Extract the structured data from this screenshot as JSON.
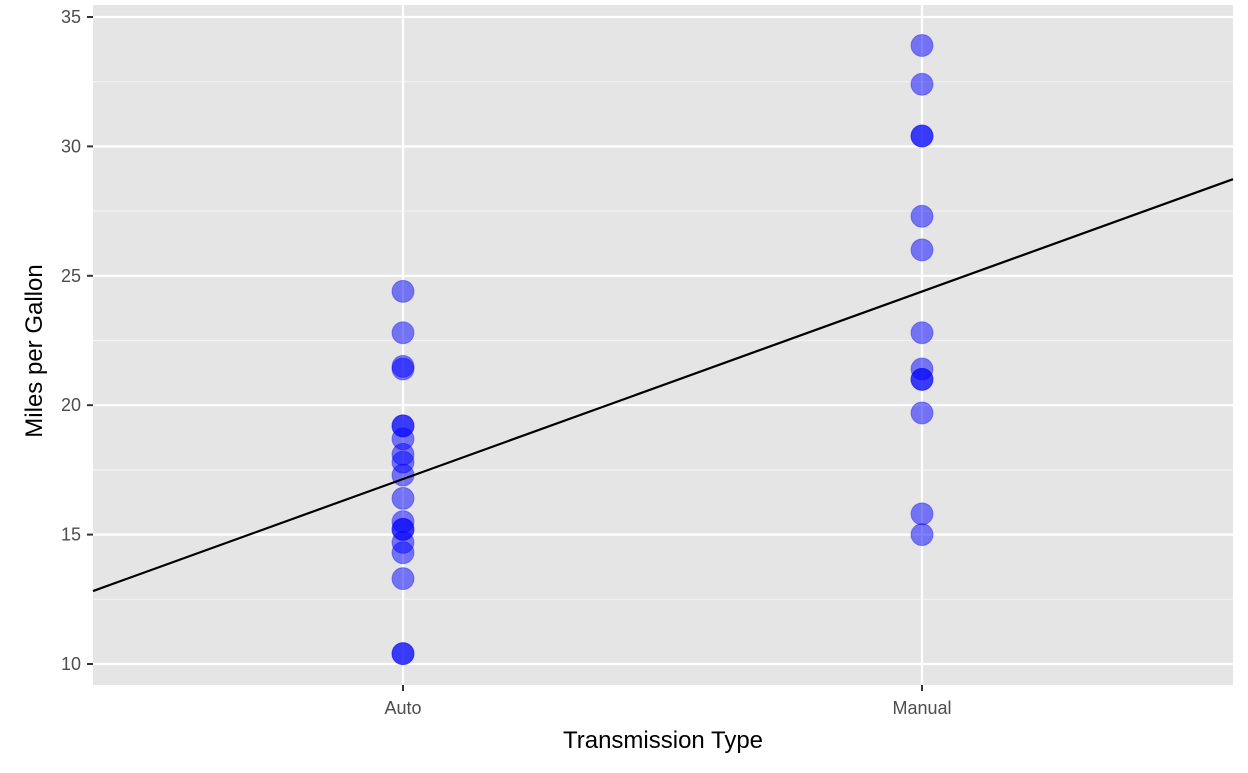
{
  "chart_data": {
    "type": "scatter",
    "title": "",
    "xlabel": "Transmission Type",
    "ylabel": "Miles per Gallon",
    "x_type": "categorical",
    "categories": [
      "Auto",
      "Manual"
    ],
    "y_ticks": [
      "10",
      "15",
      "20",
      "25",
      "30",
      "35"
    ],
    "ylim": [
      9.2,
      35
    ],
    "grid": true,
    "legend": "none",
    "point_color": "#0000ff",
    "point_alpha": 0.5,
    "panel_color": "#e5e5e5",
    "series": [
      {
        "category": "Auto",
        "values": [
          21.4,
          18.7,
          18.1,
          14.3,
          24.4,
          22.8,
          19.2,
          17.8,
          16.4,
          17.3,
          15.2,
          10.4,
          10.4,
          14.7,
          21.5,
          15.5,
          15.2,
          13.3,
          19.2
        ]
      },
      {
        "category": "Manual",
        "values": [
          21.0,
          21.0,
          22.8,
          32.4,
          30.4,
          33.9,
          27.3,
          26.0,
          30.4,
          15.8,
          19.7,
          15.0,
          21.4
        ]
      }
    ],
    "fit_line": {
      "type": "linear regression",
      "color": "#000000",
      "intercept": 17.147,
      "slope_per_category": 7.245
    }
  }
}
